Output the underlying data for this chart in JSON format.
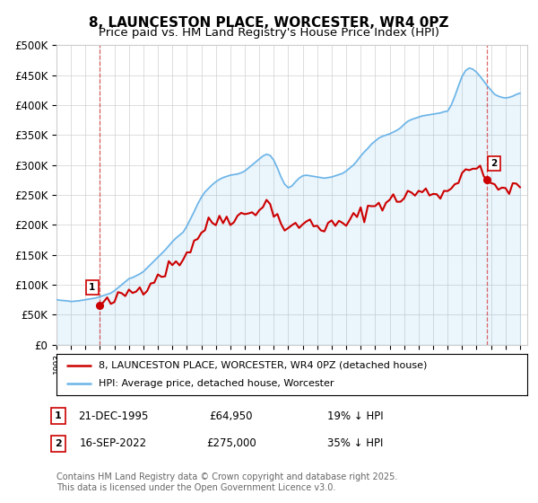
{
  "title": "8, LAUNCESTON PLACE, WORCESTER, WR4 0PZ",
  "subtitle": "Price paid vs. HM Land Registry's House Price Index (HPI)",
  "ylim": [
    0,
    500000
  ],
  "yticks": [
    0,
    50000,
    100000,
    150000,
    200000,
    250000,
    300000,
    350000,
    400000,
    450000,
    500000
  ],
  "ytick_labels": [
    "£0",
    "£50K",
    "£100K",
    "£150K",
    "£200K",
    "£250K",
    "£300K",
    "£350K",
    "£400K",
    "£450K",
    "£500K"
  ],
  "hpi_color": "#6ab4e8",
  "price_color": "#cc0000",
  "vline_color": "#cc0000",
  "point1_year": 1995.97,
  "point1_price": 64950,
  "point2_year": 2022.71,
  "point2_price": 275000,
  "legend_line1": "8, LAUNCESTON PLACE, WORCESTER, WR4 0PZ (detached house)",
  "legend_line2": "HPI: Average price, detached house, Worcester",
  "table_row1": [
    "1",
    "21-DEC-1995",
    "£64,950",
    "19% ↓ HPI"
  ],
  "table_row2": [
    "2",
    "16-SEP-2022",
    "£275,000",
    "35% ↓ HPI"
  ],
  "footnote": "Contains HM Land Registry data © Crown copyright and database right 2025.\nThis data is licensed under the Open Government Licence v3.0.",
  "bg_color": "#ffffff",
  "grid_color": "#cccccc",
  "title_fontsize": 11,
  "subtitle_fontsize": 9.5,
  "tick_fontsize": 8.5,
  "legend_fontsize": 8,
  "table_fontsize": 8.5,
  "footnote_fontsize": 7
}
